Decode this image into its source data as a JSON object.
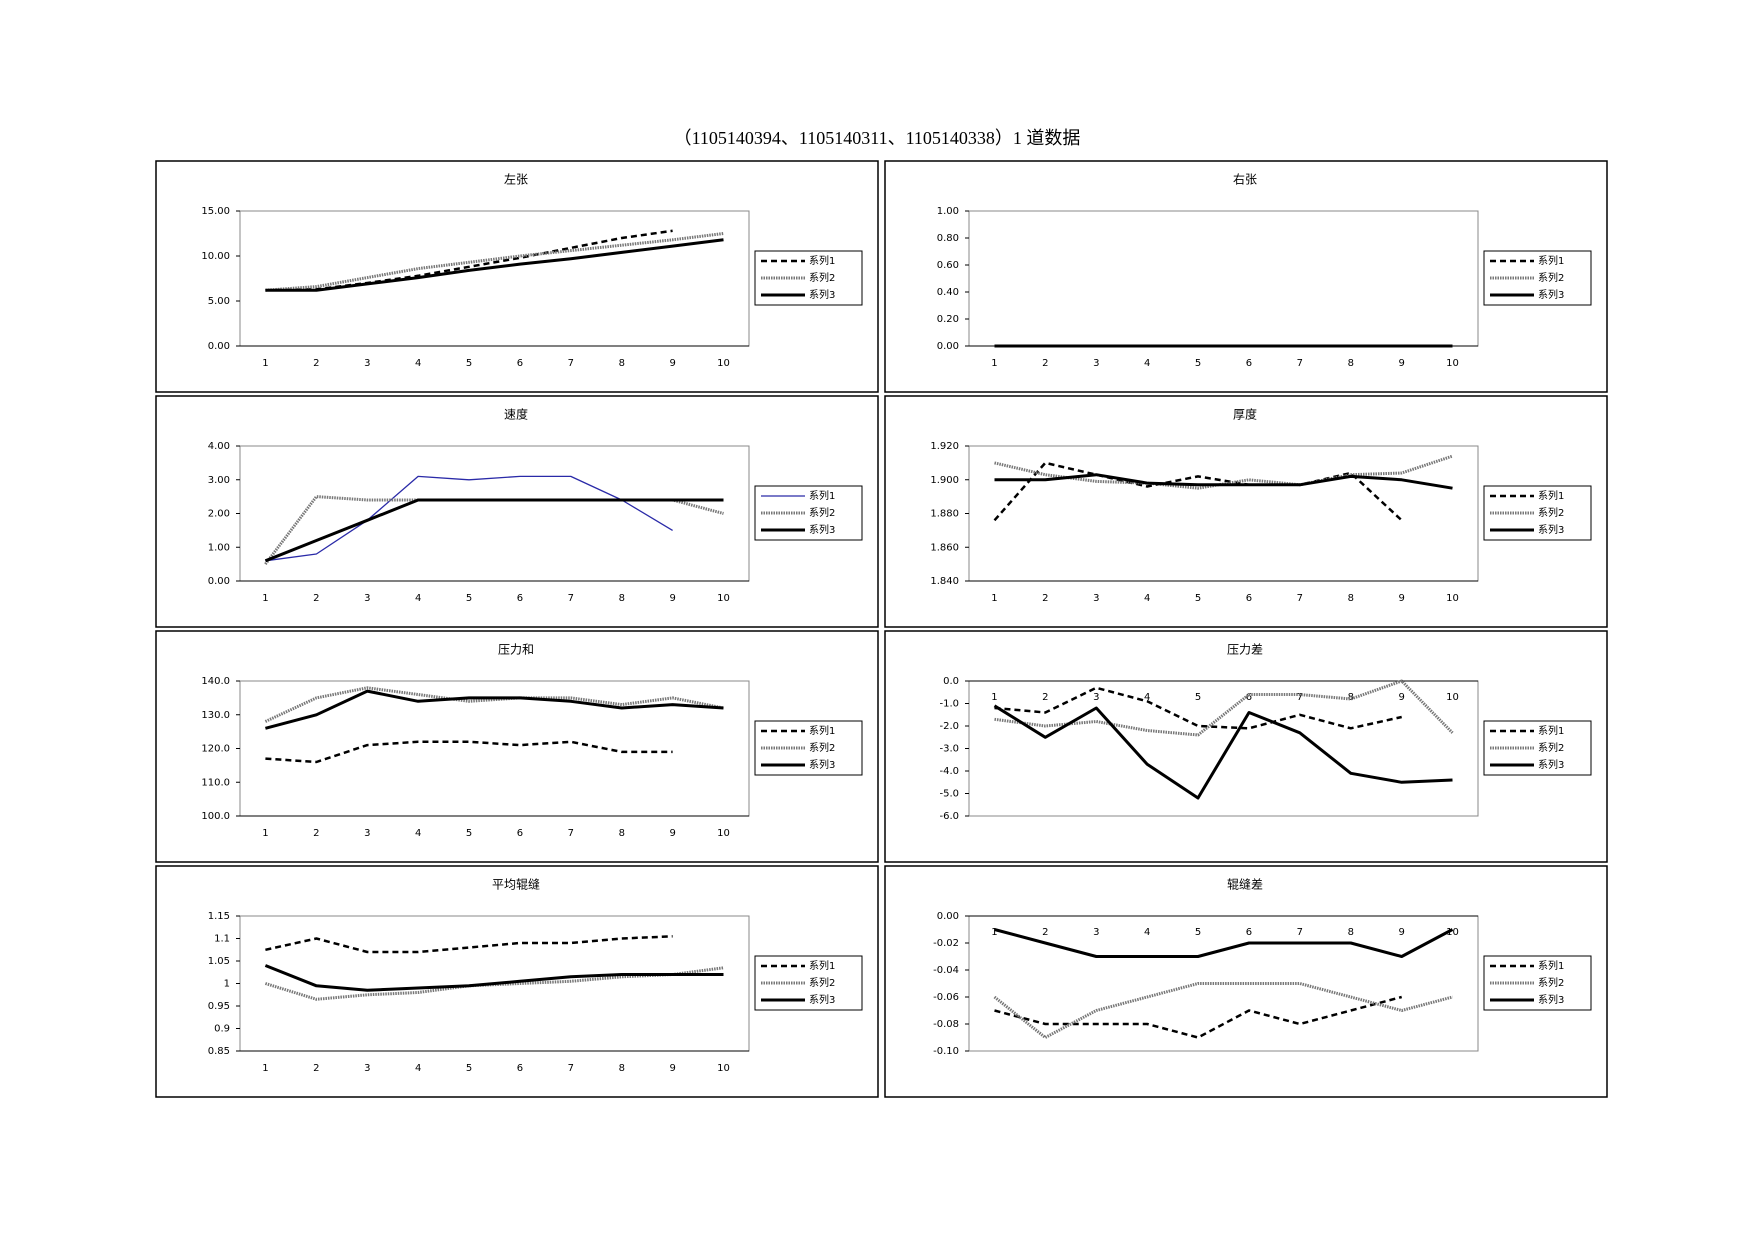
{
  "title": "（1105140394、1105140311、1105140338）1 道数据",
  "chart_data": [
    {
      "type": "line",
      "title": "左张",
      "categories": [
        1,
        2,
        3,
        4,
        5,
        6,
        7,
        8,
        9,
        10
      ],
      "ylim": [
        0,
        15
      ],
      "yticks": [
        {
          "value": 0,
          "label": "0.00"
        },
        {
          "value": 5,
          "label": "5.00"
        },
        {
          "value": 10,
          "label": "10.00"
        },
        {
          "value": 15,
          "label": "15.00"
        }
      ],
      "legend": "right",
      "x_labels": "bottom",
      "series": [
        {
          "name": "系列1",
          "color": "#000000",
          "style": "dashed",
          "values": [
            6.2,
            6.3,
            7.0,
            7.8,
            8.8,
            9.8,
            10.9,
            12.0,
            12.8,
            null
          ]
        },
        {
          "name": "系列2",
          "color": "#777777",
          "style": "hatched",
          "values": [
            6.2,
            6.6,
            7.6,
            8.6,
            9.3,
            10.0,
            10.6,
            11.2,
            11.8,
            12.5
          ]
        },
        {
          "name": "系列3",
          "color": "#000000",
          "style": "thick",
          "values": [
            6.2,
            6.2,
            6.9,
            7.6,
            8.4,
            9.1,
            9.7,
            10.4,
            11.1,
            11.8
          ]
        }
      ]
    },
    {
      "type": "line",
      "title": "右张",
      "categories": [
        1,
        2,
        3,
        4,
        5,
        6,
        7,
        8,
        9,
        10
      ],
      "ylim": [
        0,
        1
      ],
      "yticks": [
        {
          "value": 0,
          "label": "0.00"
        },
        {
          "value": 0.2,
          "label": "0.20"
        },
        {
          "value": 0.4,
          "label": "0.40"
        },
        {
          "value": 0.6,
          "label": "0.60"
        },
        {
          "value": 0.8,
          "label": "0.80"
        },
        {
          "value": 1,
          "label": "1.00"
        }
      ],
      "legend": "right",
      "x_labels": "bottom",
      "series": [
        {
          "name": "系列1",
          "color": "#000000",
          "style": "dashed",
          "values": [
            0,
            0,
            0,
            0,
            0,
            0,
            0,
            0,
            0,
            null
          ]
        },
        {
          "name": "系列2",
          "color": "#777777",
          "style": "hatched",
          "values": [
            0,
            0,
            0,
            0,
            0,
            0,
            0,
            0,
            0,
            0
          ]
        },
        {
          "name": "系列3",
          "color": "#000000",
          "style": "thick",
          "values": [
            0,
            0,
            0,
            0,
            0,
            0,
            0,
            0,
            0,
            0
          ]
        }
      ]
    },
    {
      "type": "line",
      "title": "速度",
      "categories": [
        1,
        2,
        3,
        4,
        5,
        6,
        7,
        8,
        9,
        10
      ],
      "ylim": [
        0,
        4
      ],
      "yticks": [
        {
          "value": 0,
          "label": "0.00"
        },
        {
          "value": 1,
          "label": "1.00"
        },
        {
          "value": 2,
          "label": "2.00"
        },
        {
          "value": 3,
          "label": "3.00"
        },
        {
          "value": 4,
          "label": "4.00"
        }
      ],
      "legend": "right",
      "x_labels": "bottom",
      "series": [
        {
          "name": "系列1",
          "color": "#2a2aa8",
          "style": "solid",
          "values": [
            0.6,
            0.8,
            1.8,
            3.1,
            3.0,
            3.1,
            3.1,
            2.4,
            1.5,
            null
          ]
        },
        {
          "name": "系列2",
          "color": "#777777",
          "style": "hatched",
          "values": [
            0.5,
            2.5,
            2.4,
            2.4,
            2.4,
            2.4,
            2.4,
            2.4,
            2.4,
            2.0
          ]
        },
        {
          "name": "系列3",
          "color": "#000000",
          "style": "thick",
          "values": [
            0.6,
            1.2,
            1.8,
            2.4,
            2.4,
            2.4,
            2.4,
            2.4,
            2.4,
            2.4
          ]
        }
      ]
    },
    {
      "type": "line",
      "title": "厚度",
      "categories": [
        1,
        2,
        3,
        4,
        5,
        6,
        7,
        8,
        9,
        10
      ],
      "ylim": [
        1.84,
        1.92
      ],
      "yticks": [
        {
          "value": 1.84,
          "label": "1.840"
        },
        {
          "value": 1.86,
          "label": "1.860"
        },
        {
          "value": 1.88,
          "label": "1.880"
        },
        {
          "value": 1.9,
          "label": "1.900"
        },
        {
          "value": 1.92,
          "label": "1.920"
        }
      ],
      "legend": "right",
      "x_labels": "bottom",
      "series": [
        {
          "name": "系列1",
          "color": "#000000",
          "style": "dashed",
          "values": [
            1.876,
            1.91,
            1.903,
            1.896,
            1.902,
            1.897,
            1.897,
            1.904,
            1.876,
            null
          ]
        },
        {
          "name": "系列2",
          "color": "#777777",
          "style": "hatched",
          "values": [
            1.91,
            1.903,
            1.899,
            1.898,
            1.895,
            1.9,
            1.897,
            1.903,
            1.904,
            1.914
          ]
        },
        {
          "name": "系列3",
          "color": "#000000",
          "style": "thick",
          "values": [
            1.9,
            1.9,
            1.903,
            1.898,
            1.897,
            1.897,
            1.897,
            1.902,
            1.9,
            1.895
          ]
        }
      ]
    },
    {
      "type": "line",
      "title": "压力和",
      "categories": [
        1,
        2,
        3,
        4,
        5,
        6,
        7,
        8,
        9,
        10
      ],
      "ylim": [
        100,
        140
      ],
      "yticks": [
        {
          "value": 100,
          "label": "100.0"
        },
        {
          "value": 110,
          "label": "110.0"
        },
        {
          "value": 120,
          "label": "120.0"
        },
        {
          "value": 130,
          "label": "130.0"
        },
        {
          "value": 140,
          "label": "140.0"
        }
      ],
      "legend": "right",
      "x_labels": "bottom",
      "series": [
        {
          "name": "系列1",
          "color": "#000000",
          "style": "dashed",
          "values": [
            117,
            116,
            121,
            122,
            122,
            121,
            122,
            119,
            119,
            null
          ]
        },
        {
          "name": "系列2",
          "color": "#777777",
          "style": "hatched",
          "values": [
            128,
            135,
            138,
            136,
            134,
            135,
            135,
            133,
            135,
            132
          ]
        },
        {
          "name": "系列3",
          "color": "#000000",
          "style": "thick",
          "values": [
            126,
            130,
            137,
            134,
            135,
            135,
            134,
            132,
            133,
            132
          ]
        }
      ]
    },
    {
      "type": "line",
      "title": "压力差",
      "categories": [
        1,
        2,
        3,
        4,
        5,
        6,
        7,
        8,
        9,
        10
      ],
      "ylim": [
        -6,
        0
      ],
      "yticks": [
        {
          "value": -6,
          "label": "-6.0"
        },
        {
          "value": -5,
          "label": "-5.0"
        },
        {
          "value": -4,
          "label": "-4.0"
        },
        {
          "value": -3,
          "label": "-3.0"
        },
        {
          "value": -2,
          "label": "-2.0"
        },
        {
          "value": -1,
          "label": "-1.0"
        },
        {
          "value": 0,
          "label": "0.0"
        }
      ],
      "legend": "right",
      "x_labels": "top",
      "series": [
        {
          "name": "系列1",
          "color": "#000000",
          "style": "dashed",
          "values": [
            -1.2,
            -1.4,
            -0.3,
            -0.9,
            -2.0,
            -2.1,
            -1.5,
            -2.1,
            -1.6,
            null
          ]
        },
        {
          "name": "系列2",
          "color": "#777777",
          "style": "hatched",
          "values": [
            -1.7,
            -2.0,
            -1.8,
            -2.2,
            -2.4,
            -0.6,
            -0.6,
            -0.8,
            0,
            -2.3
          ]
        },
        {
          "name": "系列3",
          "color": "#000000",
          "style": "thick",
          "values": [
            -1.1,
            -2.5,
            -1.2,
            -3.7,
            -5.2,
            -1.4,
            -2.3,
            -4.1,
            -4.5,
            -4.4
          ]
        }
      ]
    },
    {
      "type": "line",
      "title": "平均辊缝",
      "categories": [
        1,
        2,
        3,
        4,
        5,
        6,
        7,
        8,
        9,
        10
      ],
      "ylim": [
        0.85,
        1.15
      ],
      "yticks": [
        0.85,
        0.9,
        0.95,
        1,
        1.05,
        1.1,
        1.15
      ],
      "legend": "right",
      "x_labels": "bottom",
      "series": [
        {
          "name": "系列1",
          "color": "#000000",
          "style": "dashed",
          "values": [
            1.075,
            1.1,
            1.07,
            1.07,
            1.08,
            1.09,
            1.09,
            1.1,
            1.105,
            null
          ]
        },
        {
          "name": "系列2",
          "color": "#777777",
          "style": "hatched",
          "values": [
            1.0,
            0.965,
            0.975,
            0.98,
            0.995,
            1.0,
            1.005,
            1.015,
            1.02,
            1.035
          ]
        },
        {
          "name": "系列3",
          "color": "#000000",
          "style": "thick",
          "values": [
            1.04,
            0.995,
            0.985,
            0.99,
            0.995,
            1.005,
            1.015,
            1.02,
            1.02,
            1.02
          ]
        }
      ]
    },
    {
      "type": "line",
      "title": "辊缝差",
      "categories": [
        1,
        2,
        3,
        4,
        5,
        6,
        7,
        8,
        9,
        10
      ],
      "ylim": [
        -0.1,
        0
      ],
      "yticks": [
        {
          "value": -0.1,
          "label": "-0.10"
        },
        {
          "value": -0.08,
          "label": "-0.08"
        },
        {
          "value": -0.06,
          "label": "-0.06"
        },
        {
          "value": -0.04,
          "label": "-0.04"
        },
        {
          "value": -0.02,
          "label": "-0.02"
        },
        {
          "value": 0,
          "label": "0.00"
        }
      ],
      "legend": "right",
      "x_labels": "top",
      "series": [
        {
          "name": "系列1",
          "color": "#000000",
          "style": "dashed",
          "values": [
            -0.07,
            -0.08,
            -0.08,
            -0.08,
            -0.09,
            -0.07,
            -0.08,
            -0.07,
            -0.06,
            null
          ]
        },
        {
          "name": "系列2",
          "color": "#777777",
          "style": "hatched",
          "values": [
            -0.06,
            -0.09,
            -0.07,
            -0.06,
            -0.05,
            -0.05,
            -0.05,
            -0.06,
            -0.07,
            -0.06
          ]
        },
        {
          "name": "系列3",
          "color": "#000000",
          "style": "thick",
          "values": [
            -0.01,
            -0.02,
            -0.03,
            -0.03,
            -0.03,
            -0.02,
            -0.02,
            -0.02,
            -0.03,
            -0.01
          ]
        }
      ]
    }
  ]
}
